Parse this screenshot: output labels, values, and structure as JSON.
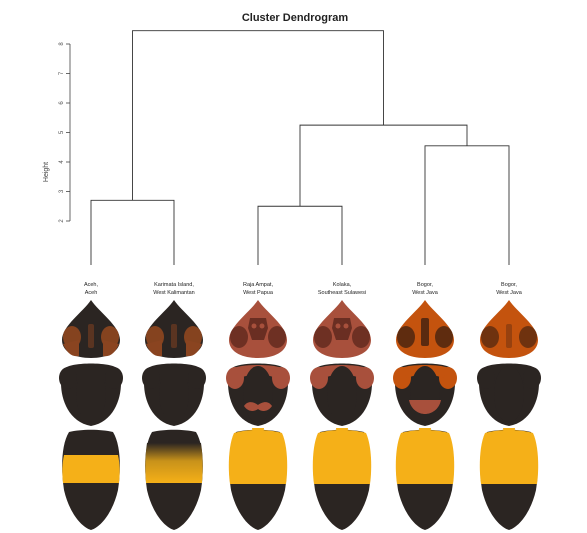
{
  "title": "Cluster Dendrogram",
  "y_axis": {
    "label": "Height",
    "ticks": [
      "2",
      "3",
      "4",
      "5",
      "6",
      "7",
      "8"
    ],
    "range": [
      2,
      8
    ]
  },
  "leaves": [
    {
      "line1": "Aceh,",
      "line2": "Aceh"
    },
    {
      "line1": "Karimata Island,",
      "line2": "West Kalimantan"
    },
    {
      "line1": "Raja Ampat,",
      "line2": "West Papua"
    },
    {
      "line1": "Kolaka,",
      "line2": "Southeast Sulawesi"
    },
    {
      "line1": "Bogor,",
      "line2": "West Java"
    },
    {
      "line1": "Bogor,",
      "line2": "West Java"
    }
  ],
  "merges": [
    {
      "left": 1,
      "right": 2,
      "height": 2.7
    },
    {
      "left": 3,
      "right": 4,
      "height": 2.5
    },
    {
      "left": 5,
      "right": 6,
      "height": 4.55
    },
    {
      "left": "c2",
      "right": "c3",
      "height": 5.25
    },
    {
      "left": "c1",
      "right": "c4",
      "height": 8.45
    }
  ],
  "bees": [
    {
      "head_base": "#2b2522",
      "head_patch": "#8a4420",
      "face_mark": "none",
      "thorax_sides": "#2b2522",
      "thorax_mark": "none",
      "band": "#f5b018",
      "band_style": "band"
    },
    {
      "head_base": "#2b2522",
      "head_patch": "#8a4420",
      "face_mark": "none",
      "thorax_sides": "#2b2522",
      "thorax_mark": "none",
      "band": "#f5b018",
      "band_style": "gradient"
    },
    {
      "head_base": "#a8503c",
      "head_patch": "#6a2e22",
      "face_mark": "mask",
      "thorax_sides": "#a8503c",
      "thorax_mark": "mustache",
      "band": "#f5b018",
      "band_style": "full"
    },
    {
      "head_base": "#a8503c",
      "head_patch": "#6a2e22",
      "face_mark": "mask",
      "thorax_sides": "#a8503c",
      "thorax_mark": "none",
      "band": "#f5b018",
      "band_style": "full"
    },
    {
      "head_base": "#c4530e",
      "head_patch": "#5a2a10",
      "face_mark": "bar",
      "thorax_sides": "#c4530e",
      "thorax_mark": "bar",
      "band": "#f5b018",
      "band_style": "full"
    },
    {
      "head_base": "#c4530e",
      "head_patch": "#6a3010",
      "face_mark": "none",
      "thorax_sides": "#2b2522",
      "thorax_mark": "none",
      "band": "#f5b018",
      "band_style": "full"
    }
  ]
}
